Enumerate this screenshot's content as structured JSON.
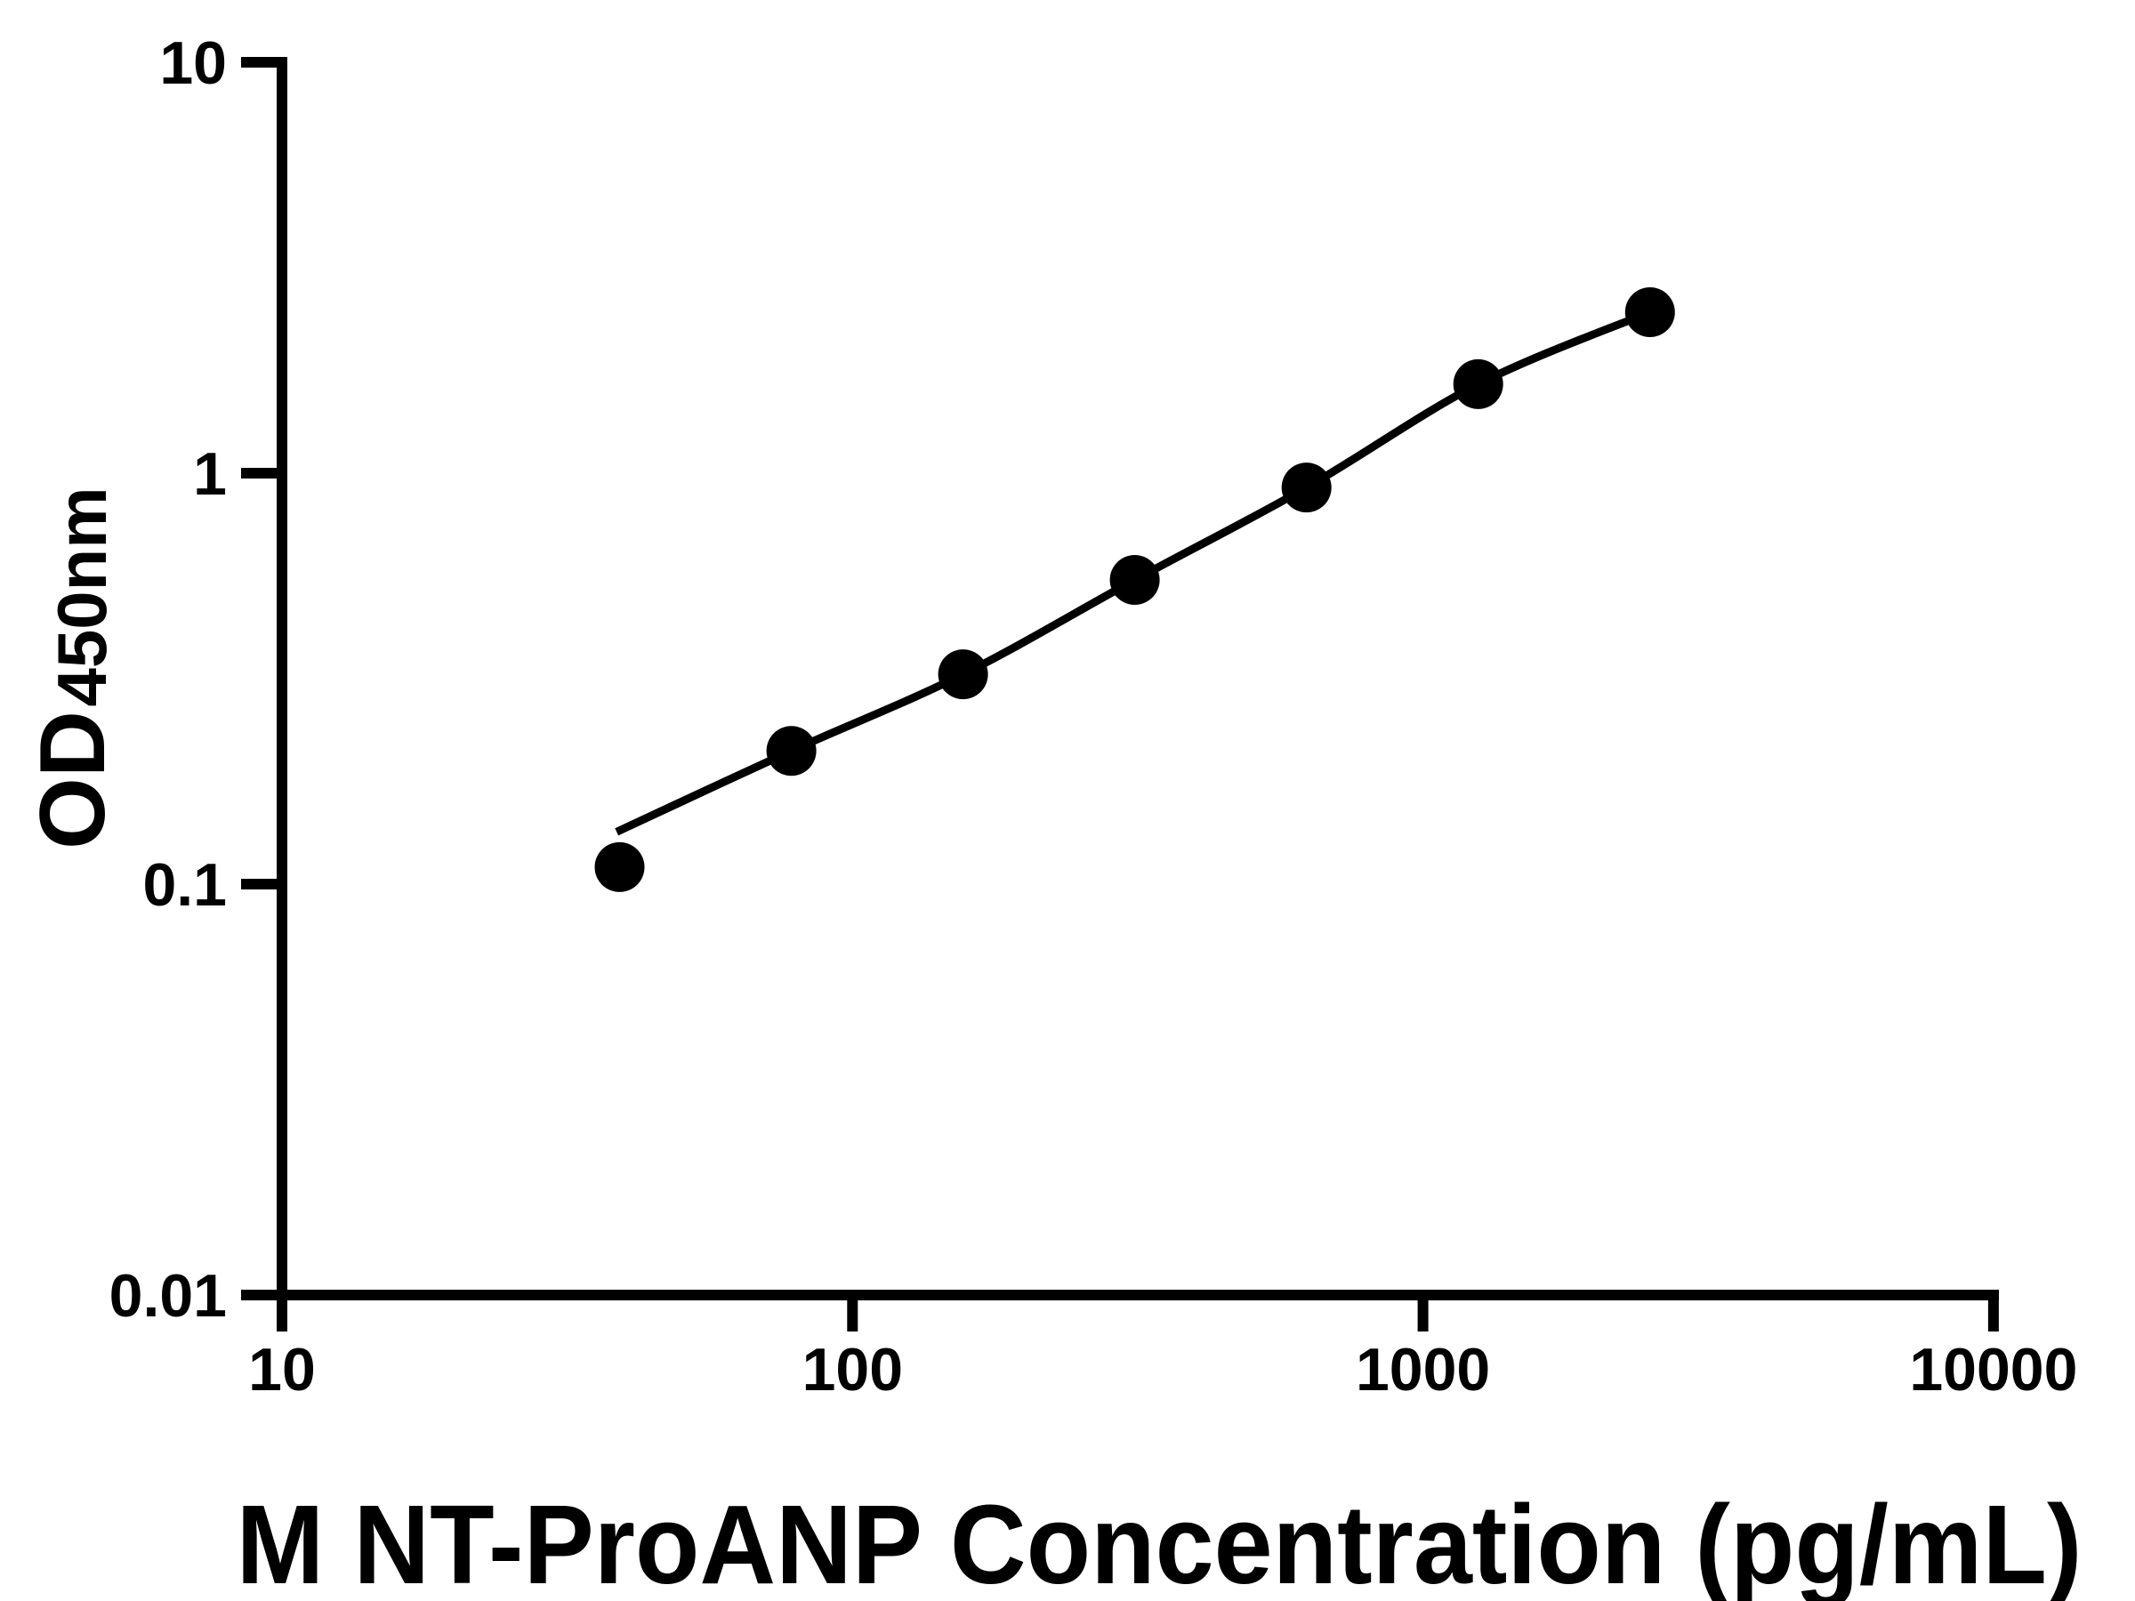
{
  "chart_data": {
    "type": "scatter",
    "title": "",
    "xlabel": "M NT-ProANP Concentration (pg/mL)",
    "ylabel_main": "OD",
    "ylabel_sub": "450nm",
    "x_scale": "log",
    "y_scale": "log",
    "xlim": [
      10,
      10000
    ],
    "ylim": [
      0.01,
      10
    ],
    "grid": false,
    "legend": false,
    "background": "#ffffff",
    "axis_color": "#000000",
    "marker_color": "#000000",
    "line_color": "#000000",
    "x_ticks": [
      {
        "value": 10,
        "label": "10"
      },
      {
        "value": 100,
        "label": "100"
      },
      {
        "value": 1000,
        "label": "1000"
      },
      {
        "value": 10000,
        "label": "10000"
      }
    ],
    "y_ticks": [
      {
        "value": 10,
        "label": "10"
      },
      {
        "value": 1,
        "label": "1"
      },
      {
        "value": 0.1,
        "label": "0.1"
      },
      {
        "value": 0.01,
        "label": "0.01"
      }
    ],
    "series": [
      {
        "name": "Standard points",
        "kind": "points",
        "x": [
          39.06,
          78.13,
          156.25,
          312.5,
          625,
          1250,
          2500
        ],
        "y": [
          0.11,
          0.211,
          0.324,
          0.55,
          0.923,
          1.647,
          2.465
        ]
      },
      {
        "name": "4PL fitted curve",
        "kind": "curve",
        "x": [
          38.6,
          78.13,
          156.25,
          312.5,
          625,
          1250,
          2500
        ],
        "y": [
          0.134,
          0.211,
          0.324,
          0.55,
          0.923,
          1.647,
          2.465
        ]
      }
    ]
  }
}
